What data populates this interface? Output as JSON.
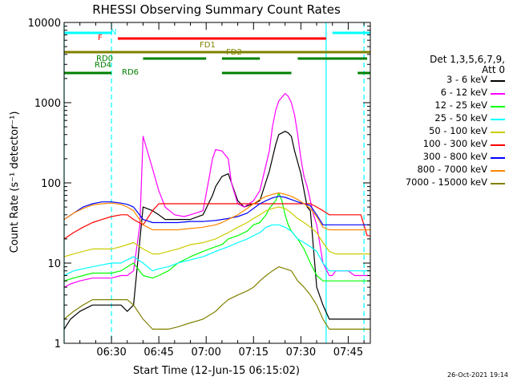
{
  "chart_data": {
    "type": "line",
    "title": "RHESSI Observing Summary Count Rates",
    "xlabel": "Start Time (12-Jun-15 06:15:02)",
    "ylabel": "Count Rate (s⁻¹ detector⁻¹)",
    "y_scale": "log",
    "ylim": [
      1,
      10000
    ],
    "y_ticks": [
      1,
      10,
      100,
      1000,
      10000
    ],
    "y_tick_labels": [
      "1",
      "10",
      "100",
      "1000",
      "10000"
    ],
    "xlim_minutes": [
      0,
      97
    ],
    "x_ticks_minutes": [
      15,
      30,
      45,
      60,
      75,
      90
    ],
    "x_tick_labels": [
      "06:30",
      "06:45",
      "07:00",
      "07:15",
      "07:30",
      "07:45"
    ],
    "series": [
      {
        "name": "3 - 6 keV",
        "color": "#000000",
        "x": [
          0,
          2,
          5,
          9,
          12,
          15,
          18,
          20,
          22,
          25,
          28,
          30,
          32,
          35,
          38,
          40,
          44,
          47,
          48,
          50,
          52,
          55,
          57,
          60,
          62,
          65,
          67,
          68,
          70,
          71,
          72,
          73,
          75,
          77,
          78,
          80,
          82,
          84,
          85,
          86,
          88,
          90,
          92,
          94,
          96,
          97
        ],
        "y": [
          1.5,
          2,
          2.5,
          3,
          3,
          3,
          3,
          2.5,
          3,
          50,
          45,
          40,
          35,
          35,
          35,
          35,
          40,
          70,
          90,
          120,
          130,
          60,
          50,
          55,
          60,
          140,
          300,
          400,
          440,
          420,
          380,
          250,
          130,
          50,
          45,
          5,
          3,
          2,
          2,
          2,
          2,
          2,
          2,
          2,
          2,
          2
        ]
      },
      {
        "name": "6 - 12 keV",
        "color": "#ff00ff",
        "x": [
          0,
          2,
          5,
          9,
          12,
          15,
          18,
          20,
          22,
          24,
          25,
          28,
          30,
          32,
          35,
          38,
          40,
          44,
          46,
          47,
          48,
          50,
          52,
          53,
          55,
          57,
          60,
          62,
          65,
          66,
          67,
          68,
          70,
          71,
          72,
          73,
          74,
          75,
          76,
          77,
          78,
          79,
          80,
          82,
          84,
          85,
          86,
          88,
          90,
          92,
          94,
          96,
          97
        ],
        "y": [
          5,
          5.5,
          6,
          6.5,
          6.5,
          6.5,
          7,
          7,
          8,
          30,
          380,
          150,
          80,
          50,
          40,
          38,
          40,
          45,
          120,
          200,
          260,
          250,
          200,
          100,
          55,
          50,
          60,
          80,
          250,
          500,
          800,
          1050,
          1300,
          1200,
          1000,
          700,
          400,
          200,
          120,
          90,
          60,
          40,
          30,
          10,
          7,
          7,
          8,
          8,
          8,
          7,
          7,
          7,
          7
        ]
      },
      {
        "name": "12 - 25 keV",
        "color": "#00ff00",
        "x": [
          0,
          3,
          6,
          9,
          12,
          15,
          18,
          20,
          22,
          25,
          28,
          30,
          33,
          36,
          40,
          44,
          48,
          50,
          52,
          55,
          58,
          60,
          62,
          64,
          65,
          67,
          68,
          69,
          70,
          71,
          72,
          74,
          76,
          78,
          80,
          82,
          84,
          86,
          88,
          90,
          92,
          94,
          96,
          97
        ],
        "y": [
          6,
          6.5,
          7,
          7.5,
          7.5,
          7.5,
          8,
          9,
          10,
          7,
          6.5,
          7,
          8,
          10,
          12,
          14,
          16,
          17,
          20,
          22,
          25,
          30,
          32,
          40,
          48,
          60,
          75,
          60,
          40,
          30,
          25,
          20,
          15,
          10,
          7,
          6,
          6,
          6,
          6,
          6,
          6,
          6,
          6,
          6
        ]
      },
      {
        "name": "25 - 50 keV",
        "color": "#00ffff",
        "x": [
          0,
          3,
          6,
          9,
          12,
          15,
          18,
          20,
          22,
          25,
          28,
          30,
          33,
          36,
          40,
          44,
          48,
          50,
          52,
          55,
          58,
          60,
          62,
          64,
          66,
          68,
          70,
          72,
          74,
          76,
          78,
          80,
          82,
          84,
          86,
          88,
          90,
          92,
          94,
          96,
          97
        ],
        "y": [
          7,
          8,
          8.5,
          9,
          9.5,
          10,
          10,
          11,
          12,
          10,
          8,
          8.5,
          9,
          10,
          11,
          12,
          14,
          15,
          16,
          18,
          20,
          22,
          24,
          28,
          30,
          30,
          28,
          25,
          20,
          18,
          16,
          14,
          10,
          8,
          8,
          8,
          8,
          8,
          8,
          8,
          8
        ]
      },
      {
        "name": "50 - 100 keV",
        "color": "#cccc00",
        "x": [
          0,
          3,
          6,
          9,
          12,
          15,
          18,
          20,
          22,
          25,
          28,
          30,
          33,
          36,
          40,
          44,
          48,
          50,
          52,
          55,
          58,
          60,
          62,
          64,
          66,
          68,
          70,
          72,
          74,
          76,
          78,
          80,
          82,
          84,
          86,
          88,
          90,
          92,
          94,
          96,
          97
        ],
        "y": [
          12,
          13,
          14,
          15,
          15,
          15,
          16,
          17,
          18,
          15,
          13,
          13,
          14,
          15,
          17,
          18,
          20,
          22,
          24,
          28,
          32,
          36,
          40,
          45,
          48,
          50,
          48,
          42,
          36,
          32,
          28,
          24,
          18,
          14,
          13,
          13,
          13,
          13,
          13,
          13,
          13
        ]
      },
      {
        "name": "100 - 300 keV",
        "color": "#ff0000",
        "x": [
          0,
          3,
          6,
          9,
          12,
          15,
          18,
          20,
          22,
          25,
          28,
          30,
          33,
          36,
          40,
          44,
          48,
          50,
          52,
          55,
          58,
          60,
          62,
          64,
          66,
          68,
          70,
          72,
          74,
          76,
          78,
          80,
          82,
          84,
          86,
          88,
          90,
          92,
          94,
          96,
          97
        ],
        "y": [
          20,
          24,
          28,
          32,
          35,
          38,
          40,
          40,
          35,
          30,
          45,
          55,
          55,
          55,
          55,
          55,
          55,
          55,
          55,
          55,
          55,
          55,
          55,
          55,
          55,
          55,
          55,
          55,
          55,
          55,
          55,
          50,
          45,
          40,
          40,
          40,
          40,
          40,
          40,
          22,
          22
        ]
      },
      {
        "name": "300 - 800 keV",
        "color": "#0000ff",
        "x": [
          0,
          3,
          6,
          9,
          12,
          15,
          18,
          20,
          22,
          25,
          28,
          30,
          33,
          36,
          40,
          44,
          48,
          50,
          52,
          55,
          58,
          60,
          62,
          64,
          66,
          68,
          70,
          72,
          74,
          76,
          78,
          80,
          82,
          84,
          86,
          88,
          90,
          92,
          94,
          96,
          97
        ],
        "y": [
          35,
          42,
          50,
          55,
          58,
          58,
          56,
          54,
          50,
          35,
          32,
          32,
          32,
          32,
          33,
          33,
          34,
          35,
          36,
          38,
          42,
          48,
          55,
          60,
          65,
          68,
          66,
          62,
          58,
          55,
          52,
          40,
          30,
          30,
          30,
          30,
          30,
          30,
          30,
          30,
          30
        ]
      },
      {
        "name": "800 - 7000 keV",
        "color": "#ff8800",
        "x": [
          0,
          3,
          6,
          9,
          12,
          15,
          18,
          20,
          22,
          25,
          28,
          30,
          33,
          36,
          40,
          44,
          48,
          50,
          52,
          55,
          58,
          60,
          62,
          64,
          66,
          68,
          70,
          72,
          74,
          76,
          78,
          80,
          82,
          84,
          86,
          88,
          90,
          92,
          94,
          96,
          97
        ],
        "y": [
          35,
          42,
          48,
          53,
          55,
          56,
          54,
          50,
          45,
          30,
          26,
          26,
          26,
          26,
          27,
          28,
          30,
          32,
          35,
          40,
          48,
          55,
          62,
          68,
          72,
          75,
          72,
          68,
          62,
          55,
          48,
          38,
          28,
          26,
          26,
          26,
          26,
          26,
          26,
          26,
          26
        ]
      },
      {
        "name": "7000 - 15000 keV",
        "color": "#808000",
        "x": [
          0,
          3,
          6,
          9,
          12,
          15,
          18,
          20,
          22,
          25,
          28,
          30,
          33,
          36,
          40,
          44,
          48,
          50,
          52,
          55,
          58,
          60,
          62,
          64,
          66,
          68,
          70,
          72,
          74,
          76,
          78,
          80,
          82,
          84,
          86,
          88,
          90,
          92,
          94,
          96,
          97
        ],
        "y": [
          2,
          2.5,
          3,
          3.5,
          3.5,
          3.5,
          3.5,
          3.5,
          3,
          2,
          1.5,
          1.5,
          1.5,
          1.6,
          1.8,
          2,
          2.5,
          3,
          3.5,
          4,
          4.5,
          5,
          6,
          7,
          8,
          9,
          8.5,
          8,
          6,
          5,
          4,
          3,
          2,
          1.5,
          1.5,
          1.5,
          1.5,
          1.5,
          1.5,
          1.5,
          1.5
        ]
      }
    ],
    "flag_bars": [
      {
        "label": "N",
        "color": "#00ffff",
        "segments": [
          [
            0,
            15
          ],
          [
            85,
            97
          ]
        ]
      },
      {
        "label": "F",
        "color": "#ff0000",
        "segments": [
          [
            17,
            83
          ]
        ]
      },
      {
        "label": "FD1",
        "color": "#808000",
        "segments": [
          [
            0,
            97
          ]
        ]
      },
      {
        "label": "FD2",
        "color": "#808000",
        "segments": [
          [
            54,
            88
          ]
        ]
      },
      {
        "label": "RD0",
        "color": "#008000",
        "segments": [
          [
            25,
            45
          ],
          [
            50,
            62
          ],
          [
            74,
            96
          ]
        ]
      },
      {
        "label": "RD4",
        "color": "#008000",
        "segments": []
      },
      {
        "label": "RD6",
        "color": "#008000",
        "segments": [
          [
            0,
            15
          ],
          [
            50,
            72
          ],
          [
            93,
            97
          ]
        ]
      }
    ],
    "vertical_markers": [
      {
        "x": 0,
        "color": "#00ffff",
        "style": "solid"
      },
      {
        "x": 15,
        "color": "#00ffff",
        "style": "dashed"
      },
      {
        "x": 83,
        "color": "#00ffff",
        "style": "solid"
      },
      {
        "x": 95,
        "color": "#00ffff",
        "style": "dashed"
      }
    ]
  },
  "legend_header": [
    "Det 1,3,5,6,7,9,",
    "Att 0"
  ],
  "timestamp": "26-Oct-2021 19:14"
}
